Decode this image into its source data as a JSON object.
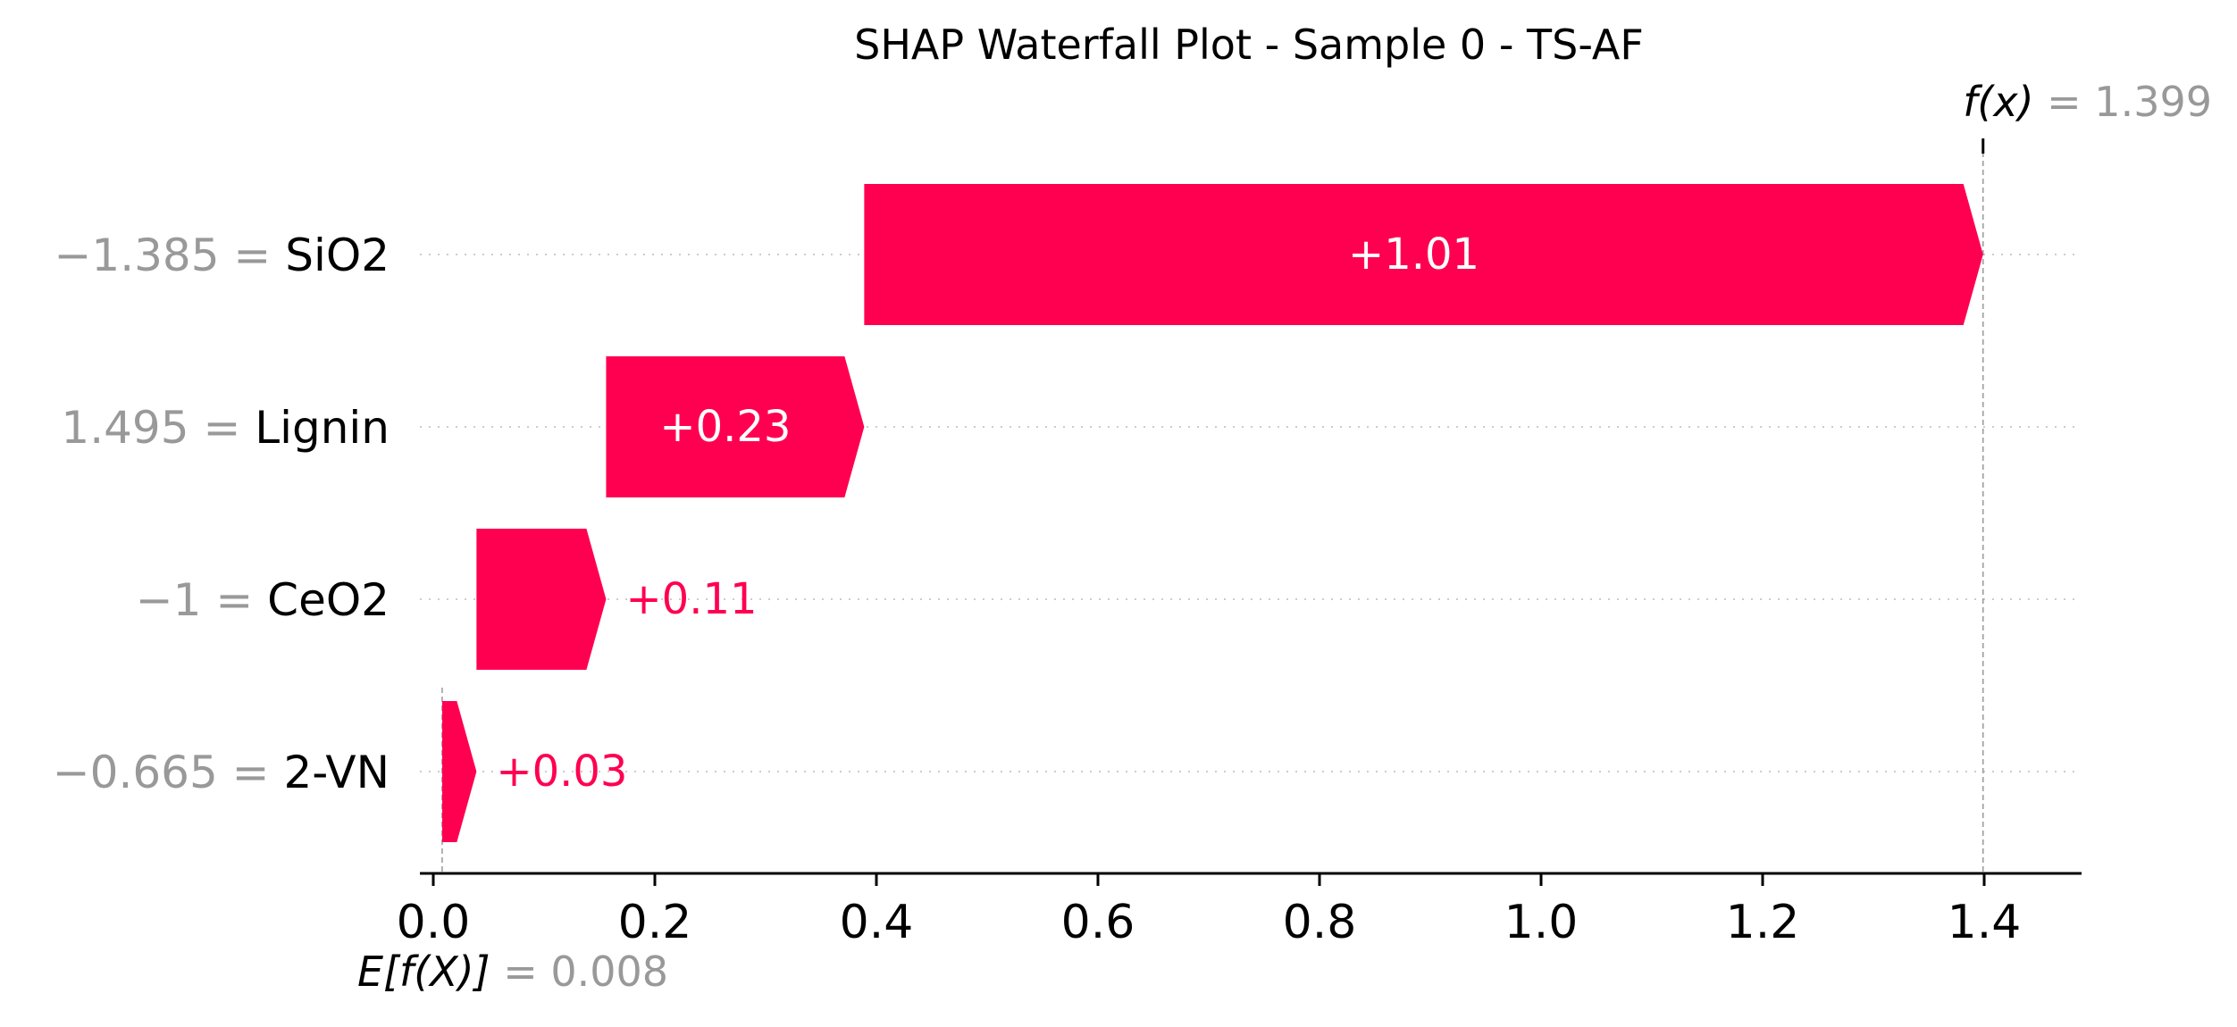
{
  "chart_data": {
    "type": "bar",
    "subtype": "shap-waterfall",
    "title": "SHAP Waterfall Plot - Sample 0 - TS-AF",
    "base_value": 0.008,
    "base_label_math": "E[f(X)]",
    "base_value_text": "= 0.008",
    "output_value": 1.399,
    "output_label_math": "f(x)",
    "output_value_text": "= 1.399",
    "xlim": [
      -0.01,
      1.47
    ],
    "ticks": [
      0.0,
      0.2,
      0.4,
      0.6,
      0.8,
      1.0,
      1.2,
      1.4
    ],
    "tick_labels": [
      "0.0",
      "0.2",
      "0.4",
      "0.6",
      "0.8",
      "1.0",
      "1.2",
      "1.4"
    ],
    "features": [
      {
        "value_text": "−1.385 =",
        "name": "SiO2",
        "shap": 1.01,
        "start": 0.389,
        "end": 1.399,
        "label": "+1.01"
      },
      {
        "value_text": "1.495 =",
        "name": "Lignin",
        "shap": 0.23,
        "start": 0.156,
        "end": 0.389,
        "label": "+0.23"
      },
      {
        "value_text": "−1 =",
        "name": "CeO2",
        "shap": 0.11,
        "start": 0.039,
        "end": 0.156,
        "label": "+0.11"
      },
      {
        "value_text": "−0.665 =",
        "name": "2-VN",
        "shap": 0.03,
        "start": 0.008,
        "end": 0.039,
        "label": "+0.03"
      }
    ],
    "colors": {
      "positive": "#ff0051",
      "axis": "#000000",
      "muted": "#999999",
      "gridline": "#cccccc"
    }
  }
}
